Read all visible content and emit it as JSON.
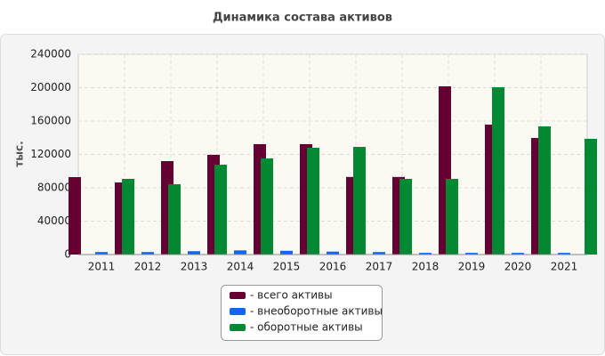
{
  "chart_data": {
    "type": "bar",
    "title": "Динамика состава активов",
    "y_label": "тыс.",
    "categories": [
      "2011",
      "2012",
      "2013",
      "2014",
      "2015",
      "2016",
      "2017",
      "2018",
      "2019",
      "2020",
      "2021"
    ],
    "series": [
      {
        "name": "- всего активы",
        "color": "#660033",
        "values": [
          92800,
          86400,
          112000,
          119500,
          132300,
          132300,
          93000,
          93000,
          201600,
          155700,
          139700
        ]
      },
      {
        "name": "- внеоборотные активы",
        "color": "#1166ee",
        "values": [
          3000,
          3000,
          4000,
          5000,
          4500,
          3500,
          3000,
          2000,
          2000,
          2000,
          2000
        ]
      },
      {
        "name": "- оборотные активы",
        "color": "#008833",
        "values": [
          90700,
          84300,
          107700,
          115200,
          128000,
          129000,
          90700,
          90700,
          200500,
          153600,
          138700
        ]
      }
    ],
    "ylim": [
      0,
      240000
    ],
    "yticks": [
      0,
      40000,
      80000,
      120000,
      160000,
      200000,
      240000
    ],
    "grid": true
  }
}
